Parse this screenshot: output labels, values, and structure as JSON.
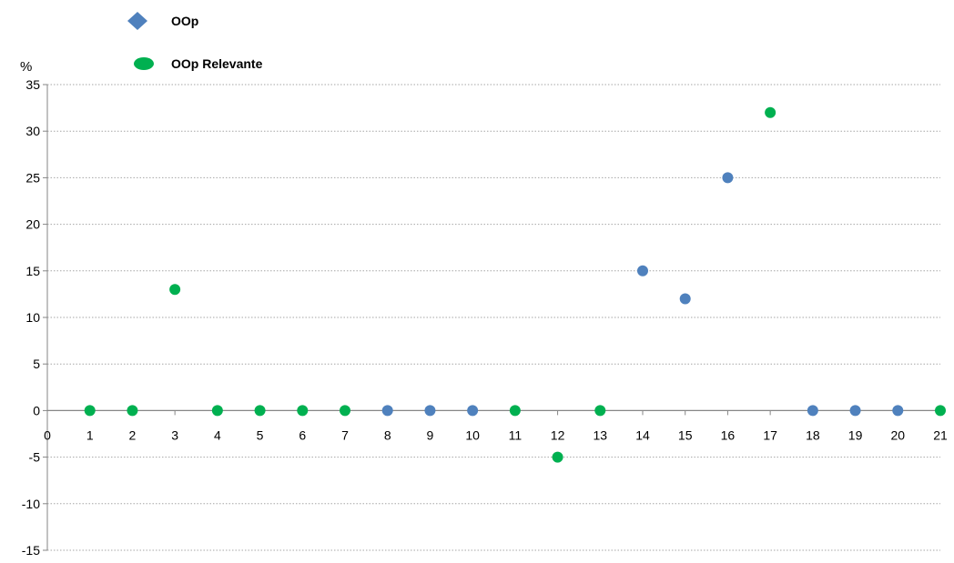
{
  "chart_data": {
    "type": "scatter",
    "ylabel": "%",
    "xlim": [
      0,
      21
    ],
    "ylim": [
      -15,
      35
    ],
    "x_ticks": [
      "0",
      "1",
      "2",
      "3",
      "4",
      "5",
      "6",
      "7",
      "8",
      "9",
      "10",
      "11",
      "12",
      "13",
      "14",
      "15",
      "16",
      "17",
      "18",
      "19",
      "20",
      "21"
    ],
    "y_ticks": [
      "35",
      "30",
      "25",
      "20",
      "15",
      "10",
      "5",
      "0",
      "-5",
      "-10",
      "-15"
    ],
    "grid": true,
    "legend_position": "top-left",
    "series": [
      {
        "name": "OOp",
        "color": "#4F81BD",
        "marker": "diamond",
        "points": [
          {
            "x": 8,
            "y": 0
          },
          {
            "x": 9,
            "y": 0
          },
          {
            "x": 10,
            "y": 0
          },
          {
            "x": 14,
            "y": 15
          },
          {
            "x": 15,
            "y": 12
          },
          {
            "x": 16,
            "y": 25
          },
          {
            "x": 18,
            "y": 0
          },
          {
            "x": 19,
            "y": 0
          },
          {
            "x": 20,
            "y": 0
          }
        ]
      },
      {
        "name": "OOp Relevante",
        "color": "#00B050",
        "marker": "circle",
        "points": [
          {
            "x": 1,
            "y": 0
          },
          {
            "x": 2,
            "y": 0
          },
          {
            "x": 3,
            "y": 13
          },
          {
            "x": 4,
            "y": 0
          },
          {
            "x": 5,
            "y": 0
          },
          {
            "x": 6,
            "y": 0
          },
          {
            "x": 7,
            "y": 0
          },
          {
            "x": 11,
            "y": 0
          },
          {
            "x": 12,
            "y": -5
          },
          {
            "x": 13,
            "y": 0
          },
          {
            "x": 17,
            "y": 32
          },
          {
            "x": 21,
            "y": 0
          }
        ]
      }
    ]
  }
}
